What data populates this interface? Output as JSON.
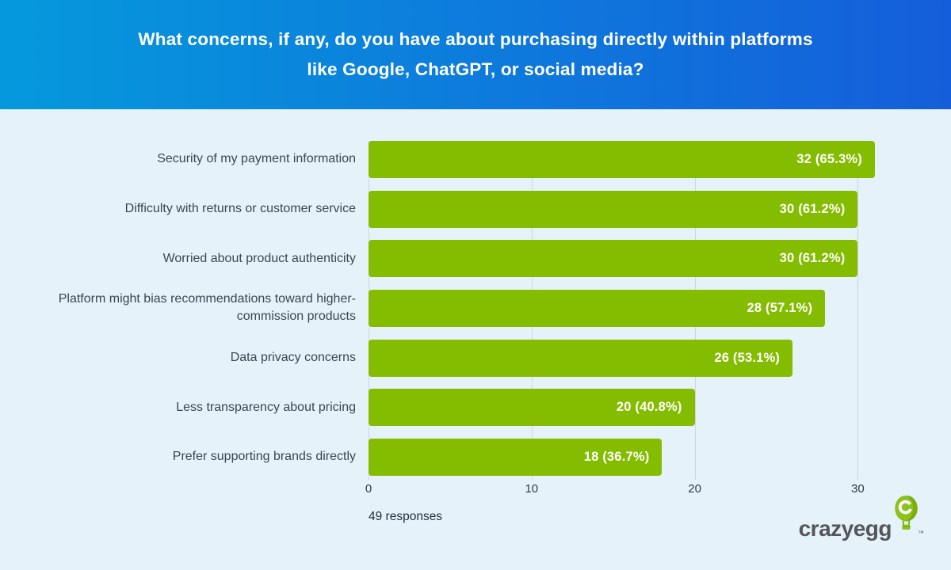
{
  "header": {
    "title_line1": "What concerns, if any, do you have about purchasing directly within platforms",
    "title_line2": "like Google, ChatGPT, or social media?"
  },
  "chart_data": {
    "type": "bar",
    "orientation": "horizontal",
    "title": "What concerns, if any, do you have about purchasing directly within platforms like Google, ChatGPT, or social media?",
    "categories": [
      "Security of my payment information",
      "Difficulty with returns or customer service",
      "Worried about product authenticity",
      "Platform might bias recommendations toward higher-commission products",
      "Data privacy concerns",
      "Less transparency about pricing",
      "Prefer supporting brands directly"
    ],
    "values": [
      32,
      30,
      30,
      28,
      26,
      20,
      18
    ],
    "percentages": [
      65.3,
      61.2,
      61.2,
      57.1,
      53.1,
      40.8,
      36.7
    ],
    "value_labels": [
      "32 (65.3%)",
      "30 (61.2%)",
      "30 (61.2%)",
      "28 (57.1%)",
      "26 (53.1%)",
      "20 (40.8%)",
      "18 (36.7%)"
    ],
    "x_ticks": [
      0,
      10,
      20,
      30
    ],
    "xlim": [
      0,
      31.05
    ],
    "grid": true,
    "legend": false,
    "bar_color": "#84bd00",
    "note": "49 responses"
  },
  "footer": {
    "responses_note": "49 responses",
    "brand": "crazyegg",
    "brand_tm": "™"
  },
  "colors": {
    "header_gradient_start": "#0599dc",
    "header_gradient_end": "#155edb",
    "background": "#e6f2fa",
    "bar_green": "#84bd00",
    "label_text": "#3a4754",
    "gridline": "#ccd6dd",
    "logo_gray": "#55565a"
  }
}
